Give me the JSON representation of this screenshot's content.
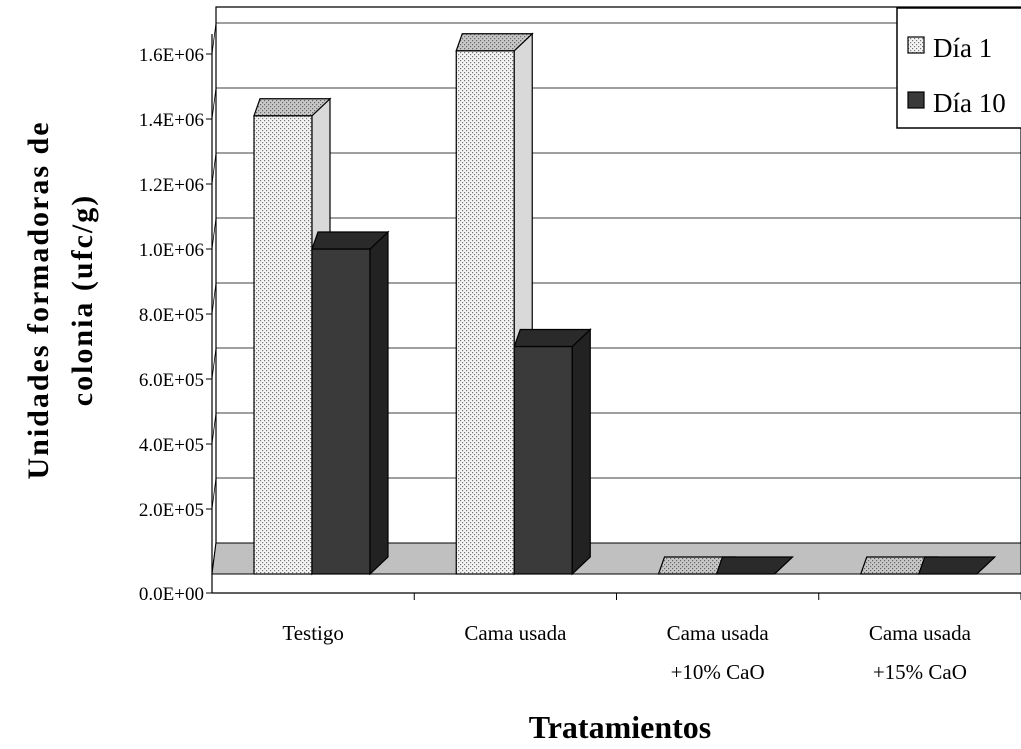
{
  "chart_data": {
    "type": "bar",
    "title": "",
    "xlabel": "Tratamientos",
    "ylabel_lines": [
      "Unidades formadoras de",
      "colonia (ufc/g)"
    ],
    "ylim": [
      0,
      1600000
    ],
    "yticks": [
      "0.0E+00",
      "2.0E+05",
      "4.0E+05",
      "6.0E+05",
      "8.0E+05",
      "1.0E+06",
      "1.2E+06",
      "1.4E+06",
      "1.6E+06"
    ],
    "categories": [
      [
        "Testigo"
      ],
      [
        "Cama usada"
      ],
      [
        "Cama usada",
        "+10% CaO"
      ],
      [
        "Cama usada",
        "+15% CaO"
      ]
    ],
    "series": [
      {
        "name": "Día 1",
        "values": [
          1410000,
          1610000,
          0,
          0
        ],
        "pattern": "dotted",
        "color": "#f2f2f2"
      },
      {
        "name": "Día 10",
        "values": [
          1000000,
          700000,
          0,
          0
        ],
        "pattern": "solid",
        "color": "#3a3a3a"
      }
    ],
    "legend_position": "top-right",
    "grid": true,
    "style": "3d"
  }
}
